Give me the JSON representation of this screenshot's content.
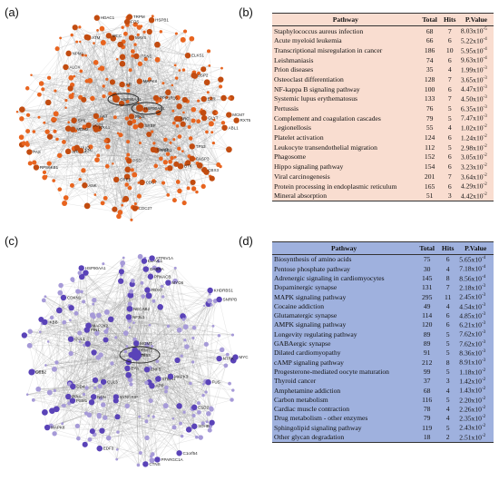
{
  "panels": {
    "a": "(a)",
    "b": "(b)",
    "c": "(c)",
    "d": "(d)"
  },
  "colors": {
    "network_a_node": "#e8641f",
    "network_a_node_dark": "#c24c10",
    "network_c_node": "#a69ad8",
    "network_c_node_dark": "#5a43b8",
    "table_b_bg": "#f9ddd0",
    "table_d_bg": "#9fb1de"
  },
  "network_a": {
    "highlighted_labels": [
      "HSP90AA1",
      "HSP90AB1"
    ],
    "labels": [
      "UUQ",
      "BTK",
      "ITSN1",
      "HAX4",
      "CDC27",
      "CDC7",
      "GOT1",
      "SRBP",
      "ITGB1",
      "MCC",
      "USP2",
      "HSPB1",
      "FAS",
      "EZR",
      "RPS6KB1",
      "PPP1R16",
      "SYK",
      "CREB",
      "ANK",
      "TRPM",
      "ALOX",
      "GLYT",
      "MCM7",
      "ATM",
      "SNAP",
      "MDM2",
      "AR",
      "ABL1",
      "ARID5A",
      "RXT5",
      "ELKS1",
      "CASP3",
      "MAVS",
      "PIK3",
      "FOS",
      "PSD",
      "AKT",
      "NPM1",
      "HDAC1",
      "MAPK8",
      "SRC",
      "JUN",
      "TP53",
      "CBX3"
    ]
  },
  "network_c": {
    "highlighted_labels": [
      "TP53"
    ],
    "labels": [
      "EDF3",
      "STMN1",
      "HSP90AA1",
      "ESD2",
      "DES",
      "KHDRBS1",
      "MAPK8",
      "ZNF5",
      "MAPK3",
      "PSM1",
      "C1orf54",
      "GRB2",
      "CUL3",
      "MYC",
      "NDN",
      "MAP2K2",
      "MGMT",
      "NTRK",
      "SYNCRIP",
      "MYO6",
      "PIN1",
      "CDH1",
      "EYA",
      "CD4",
      "APP",
      "CUL1",
      "NF3L1",
      "PRKACB",
      "ELAVL1",
      "ATP6V1A",
      "SNRPB",
      "PPARGC1A",
      "PRMT5",
      "NECAB2",
      "SDHB",
      "FUS",
      "IKBB",
      "FBXO",
      "GABRA",
      "CDKN1",
      "PPIA",
      "CTNS"
    ]
  },
  "table_b": {
    "headers": [
      "Pathway",
      "Total",
      "Hits",
      "P.Value"
    ],
    "rows": [
      {
        "pathway": "Staphylococcus aureus infection",
        "total": "68",
        "hits": "7",
        "p": "8.03x10-5"
      },
      {
        "pathway": "Acute myeloid leukemia",
        "total": "66",
        "hits": "6",
        "p": "5.22x10-4"
      },
      {
        "pathway": "Transcriptional misregulation in cancer",
        "total": "186",
        "hits": "10",
        "p": "5.95x10-4"
      },
      {
        "pathway": "Leishmaniasis",
        "total": "74",
        "hits": "6",
        "p": "9.63x10-4"
      },
      {
        "pathway": "Prion diseases",
        "total": "35",
        "hits": "4",
        "p": "1.99x10-3"
      },
      {
        "pathway": "Osteoclast differentiation",
        "total": "128",
        "hits": "7",
        "p": "3.65x10-3"
      },
      {
        "pathway": "NF-kappa B signaling pathway",
        "total": "100",
        "hits": "6",
        "p": "4.47x10-3"
      },
      {
        "pathway": "Systemic lupus erythematosus",
        "total": "133",
        "hits": "7",
        "p": "4.50x10-3"
      },
      {
        "pathway": "Pertussis",
        "total": "76",
        "hits": "5",
        "p": "6.35x10-3"
      },
      {
        "pathway": "Complement and coagulation cascades",
        "total": "79",
        "hits": "5",
        "p": "7.47x10-3"
      },
      {
        "pathway": "Legionellosis",
        "total": "55",
        "hits": "4",
        "p": "1.02x10-2"
      },
      {
        "pathway": "Platelet activation",
        "total": "124",
        "hits": "6",
        "p": "1.24x10-2"
      },
      {
        "pathway": "Leukocyte transendothelial migration",
        "total": "112",
        "hits": "5",
        "p": "2.98x10-2"
      },
      {
        "pathway": "Phagosome",
        "total": "152",
        "hits": "6",
        "p": "3.05x10-2"
      },
      {
        "pathway": "Hippo signaling pathway",
        "total": "154",
        "hits": "6",
        "p": "3.23x10-2"
      },
      {
        "pathway": "Viral carcinogenesis",
        "total": "201",
        "hits": "7",
        "p": "3.64x10-2"
      },
      {
        "pathway": "Protein processing in endoplasmic reticulum",
        "total": "165",
        "hits": "6",
        "p": "4.29x10-2"
      },
      {
        "pathway": "Mineral absorption",
        "total": "51",
        "hits": "3",
        "p": "4.42x10-2"
      }
    ]
  },
  "table_d": {
    "headers": [
      "Pathway",
      "Total",
      "Hits",
      "P.Value"
    ],
    "rows": [
      {
        "pathway": "Biosynthesis of amino acids",
        "total": "75",
        "hits": "6",
        "p": "5.65x10-4"
      },
      {
        "pathway": "Pentose phosphate pathway",
        "total": "30",
        "hits": "4",
        "p": "7.18x10-4"
      },
      {
        "pathway": "Adrenergic signaling in cardiomyocytes",
        "total": "145",
        "hits": "8",
        "p": "8.56x10-4"
      },
      {
        "pathway": "Dopaminergic synapse",
        "total": "131",
        "hits": "7",
        "p": "2.18x10-3"
      },
      {
        "pathway": "MAPK signaling pathway",
        "total": "295",
        "hits": "11",
        "p": "2.45x10-3"
      },
      {
        "pathway": "Cocaine addiction",
        "total": "49",
        "hits": "4",
        "p": "4.54x10-3"
      },
      {
        "pathway": "Glutamatergic synapse",
        "total": "114",
        "hits": "6",
        "p": "4.85x10-3"
      },
      {
        "pathway": "AMPK signaling pathway",
        "total": "120",
        "hits": "6",
        "p": "6.21x10-3"
      },
      {
        "pathway": "Longevity regulating pathway",
        "total": "89",
        "hits": "5",
        "p": "7.62x10-3"
      },
      {
        "pathway": "GABAergic synapse",
        "total": "89",
        "hits": "5",
        "p": "7.62x10-3"
      },
      {
        "pathway": "Dilated cardiomyopathy",
        "total": "91",
        "hits": "5",
        "p": "8.36x10-3"
      },
      {
        "pathway": "cAMP signaling pathway",
        "total": "212",
        "hits": "8",
        "p": "8.91x10-3"
      },
      {
        "pathway": "Progesterone-mediated oocyte maturation",
        "total": "99",
        "hits": "5",
        "p": "1.18x10-2"
      },
      {
        "pathway": "Thyroid cancer",
        "total": "37",
        "hits": "3",
        "p": "1.42x10-2"
      },
      {
        "pathway": "Amphetamine addiction",
        "total": "68",
        "hits": "4",
        "p": "1.43x10-2"
      },
      {
        "pathway": "Carbon metabolism",
        "total": "116",
        "hits": "5",
        "p": "2.20x10-2"
      },
      {
        "pathway": "Cardiac muscle contraction",
        "total": "78",
        "hits": "4",
        "p": "2.26x10-2"
      },
      {
        "pathway": "Drug metabolism - other enzymes",
        "total": "79",
        "hits": "4",
        "p": "2.35x10-2"
      },
      {
        "pathway": "Sphingolipid signaling pathway",
        "total": "119",
        "hits": "5",
        "p": "2.43x10-2"
      },
      {
        "pathway": "Other glycan degradation",
        "total": "18",
        "hits": "2",
        "p": "2.51x10-2"
      }
    ]
  }
}
